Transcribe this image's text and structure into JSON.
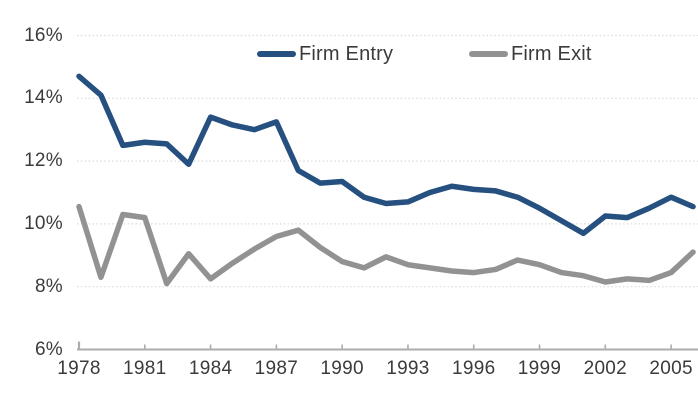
{
  "chart_data": {
    "type": "line",
    "title": "",
    "xlabel": "",
    "ylabel": "",
    "x": [
      1978,
      1979,
      1980,
      1981,
      1982,
      1983,
      1984,
      1985,
      1986,
      1987,
      1988,
      1989,
      1990,
      1991,
      1992,
      1993,
      1994,
      1995,
      1996,
      1997,
      1998,
      1999,
      2000,
      2001,
      2002,
      2003,
      2004,
      2005,
      2006
    ],
    "series": [
      {
        "name": "Firm Entry",
        "color": "#25507F",
        "values": [
          14.7,
          14.1,
          12.5,
          12.6,
          12.55,
          11.9,
          13.4,
          13.15,
          13.0,
          13.25,
          11.7,
          11.3,
          11.35,
          10.85,
          10.65,
          10.7,
          11.0,
          11.2,
          11.1,
          11.05,
          10.85,
          10.5,
          10.1,
          9.7,
          10.25,
          10.2,
          10.5,
          10.85,
          10.55
        ]
      },
      {
        "name": "Firm Exit",
        "color": "#929292",
        "values": [
          10.55,
          8.3,
          10.3,
          10.2,
          8.1,
          9.05,
          8.25,
          8.75,
          9.2,
          9.6,
          9.8,
          9.25,
          8.8,
          8.6,
          8.95,
          8.7,
          8.6,
          8.5,
          8.45,
          8.55,
          8.85,
          8.7,
          8.45,
          8.35,
          8.15,
          8.25,
          8.2,
          8.45,
          9.1
        ]
      }
    ],
    "xlim": [
      1978,
      2006.2
    ],
    "ylim": [
      6,
      16
    ],
    "yticks": [
      6,
      8,
      10,
      12,
      14,
      16
    ],
    "ytick_labels": [
      "6%",
      "8%",
      "10%",
      "12%",
      "14%",
      "16%"
    ],
    "xticks": [
      1978,
      1981,
      1984,
      1987,
      1990,
      1993,
      1996,
      1999,
      2002,
      2005
    ],
    "grid": "horizontal-dotted",
    "legend_position": "top-center"
  },
  "colors": {
    "axis": "#ACACAC",
    "grid": "#D9D9D9",
    "text": "#3B3B3B"
  },
  "legend": {
    "entries": [
      "Firm Entry",
      "Firm Exit"
    ]
  }
}
